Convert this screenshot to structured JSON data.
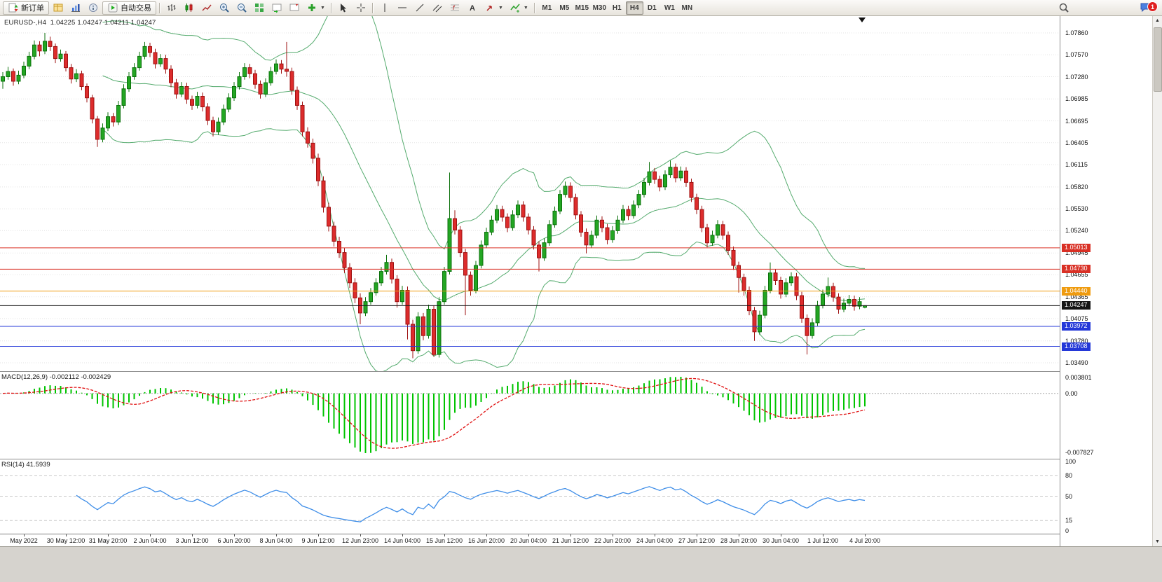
{
  "toolbar": {
    "new_order": "新订单",
    "auto_trading": "自动交易",
    "timeframes": [
      "M1",
      "M5",
      "M15",
      "M30",
      "H1",
      "H4",
      "D1",
      "W1",
      "MN"
    ],
    "active_timeframe": "H4",
    "notification_count": "1"
  },
  "chart": {
    "header": {
      "symbol_tf": "EURUSD-,H4",
      "ohlc": "1.04225 1.04247 1.04211 1.04247"
    }
  },
  "chart_data": {
    "type": "candlestick",
    "symbol": "EURUSD-",
    "timeframe": "H4",
    "ohlc_current": {
      "open": "1.04225",
      "high": "1.04247",
      "low": "1.04211",
      "close": "1.04247"
    },
    "y_ticks": [
      "1.07860",
      "1.07570",
      "1.07280",
      "1.06985",
      "1.06695",
      "1.06405",
      "1.06115",
      "1.05820",
      "1.05530",
      "1.05240",
      "1.04945",
      "1.04655",
      "1.04365",
      "1.04075",
      "1.03780",
      "1.03490"
    ],
    "x_labels": [
      {
        "text": "May 2022",
        "i": 4
      },
      {
        "text": "30 May 12:00",
        "i": 12
      },
      {
        "text": "31 May 20:00",
        "i": 20
      },
      {
        "text": "2 Jun 04:00",
        "i": 28
      },
      {
        "text": "3 Jun 12:00",
        "i": 36
      },
      {
        "text": "6 Jun 20:00",
        "i": 44
      },
      {
        "text": "8 Jun 04:00",
        "i": 52
      },
      {
        "text": "9 Jun 12:00",
        "i": 60
      },
      {
        "text": "12 Jun 23:00",
        "i": 68
      },
      {
        "text": "14 Jun 04:00",
        "i": 76
      },
      {
        "text": "15 Jun 12:00",
        "i": 84
      },
      {
        "text": "16 Jun 20:00",
        "i": 92
      },
      {
        "text": "20 Jun 04:00",
        "i": 100
      },
      {
        "text": "21 Jun 12:00",
        "i": 108
      },
      {
        "text": "22 Jun 20:00",
        "i": 116
      },
      {
        "text": "24 Jun 04:00",
        "i": 124
      },
      {
        "text": "27 Jun 12:00",
        "i": 132
      },
      {
        "text": "28 Jun 20:00",
        "i": 140
      },
      {
        "text": "30 Jun 04:00",
        "i": 148
      },
      {
        "text": "1 Jul 12:00",
        "i": 156
      },
      {
        "text": "4 Jul 20:00",
        "i": 164
      }
    ],
    "hlines": [
      {
        "price": 1.05013,
        "label": "1.05013",
        "color": "#d93025"
      },
      {
        "price": 1.0473,
        "label": "1.04730",
        "color": "#d93025"
      },
      {
        "price": 1.0444,
        "label": "1.04440",
        "color": "#ef9b0f"
      },
      {
        "price": 1.03972,
        "label": "1.03972",
        "color": "#2438d8"
      },
      {
        "price": 1.03708,
        "label": "1.03708",
        "color": "#2438d8"
      }
    ],
    "price_line": {
      "price": 1.04247,
      "label": "1.04247",
      "color": "#141414"
    },
    "colors": {
      "up": "#23a623",
      "up_border": "#0c720c",
      "down": "#dd2c2c",
      "down_border": "#9e1212",
      "bollinger": "#55ab6e",
      "macd_hist": "#00c400",
      "macd_signal": "#e01010",
      "rsi": "#3f8ee8",
      "grid": "#e3e3e3"
    },
    "indicators": {
      "bollinger": {
        "name": "Bollinger Bands",
        "period": 20,
        "deviation": 2
      },
      "macd": {
        "label": "MACD(12,26,9)",
        "value_main": "-0.002112",
        "value_signal": "-0.002429",
        "axis_top": "0.003801",
        "axis_zero": "0.00",
        "axis_bottom": "-0.007827"
      },
      "rsi": {
        "label": "RSI(14)",
        "value": "41.5939",
        "axis": [
          "100",
          "80",
          "50",
          "15",
          "0"
        ],
        "levels": [
          80,
          50,
          15
        ]
      }
    },
    "candles": [
      [
        1.0722,
        1.0734,
        1.0712,
        1.0728
      ],
      [
        1.0728,
        1.0741,
        1.0724,
        1.0735
      ],
      [
        1.0735,
        1.0739,
        1.0716,
        1.0722
      ],
      [
        1.0722,
        1.0736,
        1.0718,
        1.073
      ],
      [
        1.073,
        1.0748,
        1.0726,
        1.0742
      ],
      [
        1.0742,
        1.0761,
        1.0738,
        1.0755
      ],
      [
        1.0755,
        1.0776,
        1.0751,
        1.077
      ],
      [
        1.077,
        1.0775,
        1.0755,
        1.0762
      ],
      [
        1.0762,
        1.0786,
        1.0758,
        1.0775
      ],
      [
        1.0775,
        1.0781,
        1.0762,
        1.0768
      ],
      [
        1.0768,
        1.0772,
        1.0746,
        1.0752
      ],
      [
        1.0752,
        1.0764,
        1.0748,
        1.0758
      ],
      [
        1.0758,
        1.0762,
        1.0735,
        1.074
      ],
      [
        1.074,
        1.0745,
        1.0719,
        1.0725
      ],
      [
        1.0725,
        1.0738,
        1.0721,
        1.0732
      ],
      [
        1.0732,
        1.0736,
        1.071,
        1.0715
      ],
      [
        1.0715,
        1.0719,
        1.0694,
        1.07
      ],
      [
        1.07,
        1.0704,
        1.0666,
        1.0672
      ],
      [
        1.0672,
        1.0676,
        1.0635,
        1.0645
      ],
      [
        1.0645,
        1.0666,
        1.0641,
        1.066
      ],
      [
        1.066,
        1.0681,
        1.0656,
        1.0675
      ],
      [
        1.0675,
        1.068,
        1.0662,
        1.0668
      ],
      [
        1.0668,
        1.0696,
        1.0664,
        1.069
      ],
      [
        1.069,
        1.0718,
        1.0686,
        1.0712
      ],
      [
        1.0712,
        1.0734,
        1.0708,
        1.0728
      ],
      [
        1.0728,
        1.0746,
        1.0724,
        1.074
      ],
      [
        1.074,
        1.0761,
        1.0736,
        1.0755
      ],
      [
        1.0755,
        1.0774,
        1.0751,
        1.0768
      ],
      [
        1.0768,
        1.0773,
        1.0754,
        1.076
      ],
      [
        1.076,
        1.0765,
        1.0739,
        1.0745
      ],
      [
        1.0745,
        1.0758,
        1.0741,
        1.0752
      ],
      [
        1.0752,
        1.0757,
        1.0732,
        1.0738
      ],
      [
        1.0738,
        1.0743,
        1.0714,
        1.072
      ],
      [
        1.072,
        1.0725,
        1.0699,
        1.0705
      ],
      [
        1.0705,
        1.0721,
        1.0701,
        1.0715
      ],
      [
        1.0715,
        1.072,
        1.0692,
        1.0698
      ],
      [
        1.0698,
        1.0703,
        1.0684,
        1.069
      ],
      [
        1.069,
        1.0708,
        1.0686,
        1.0702
      ],
      [
        1.0702,
        1.0707,
        1.0682,
        1.0688
      ],
      [
        1.0688,
        1.0693,
        1.0664,
        1.067
      ],
      [
        1.067,
        1.0675,
        1.0649,
        1.0655
      ],
      [
        1.0655,
        1.0674,
        1.0651,
        1.0668
      ],
      [
        1.0668,
        1.0691,
        1.0664,
        1.0685
      ],
      [
        1.0685,
        1.0706,
        1.0681,
        1.07
      ],
      [
        1.07,
        1.0721,
        1.0696,
        1.0715
      ],
      [
        1.0715,
        1.0734,
        1.0711,
        1.0728
      ],
      [
        1.0728,
        1.0746,
        1.0724,
        1.074
      ],
      [
        1.074,
        1.0745,
        1.0726,
        1.0732
      ],
      [
        1.0732,
        1.0737,
        1.0712,
        1.0718
      ],
      [
        1.0718,
        1.0723,
        1.0699,
        1.0705
      ],
      [
        1.0705,
        1.0726,
        1.0701,
        1.072
      ],
      [
        1.072,
        1.0741,
        1.0716,
        1.0735
      ],
      [
        1.0735,
        1.0751,
        1.0731,
        1.0745
      ],
      [
        1.0745,
        1.075,
        1.0732,
        1.0738
      ],
      [
        1.0738,
        1.0774,
        1.0728,
        1.0735
      ],
      [
        1.0735,
        1.074,
        1.0704,
        1.071
      ],
      [
        1.071,
        1.0715,
        1.0684,
        1.069
      ],
      [
        1.069,
        1.0695,
        1.0649,
        1.0655
      ],
      [
        1.0655,
        1.0661,
        1.0634,
        1.064
      ],
      [
        1.064,
        1.0646,
        1.0613,
        1.062
      ],
      [
        1.062,
        1.0626,
        1.0583,
        1.059
      ],
      [
        1.059,
        1.0596,
        1.0548,
        1.0555
      ],
      [
        1.0555,
        1.0561,
        1.0523,
        1.053
      ],
      [
        1.053,
        1.0536,
        1.0503,
        1.051
      ],
      [
        1.051,
        1.0516,
        1.0488,
        1.0495
      ],
      [
        1.0495,
        1.0501,
        1.0468,
        1.0475
      ],
      [
        1.0475,
        1.0481,
        1.0448,
        1.0455
      ],
      [
        1.0455,
        1.0461,
        1.0428,
        1.0435
      ],
      [
        1.0435,
        1.0441,
        1.04,
        1.0415
      ],
      [
        1.0415,
        1.0436,
        1.0411,
        1.043
      ],
      [
        1.043,
        1.0448,
        1.0426,
        1.0442
      ],
      [
        1.0442,
        1.0461,
        1.0438,
        1.0455
      ],
      [
        1.0455,
        1.0476,
        1.0451,
        1.047
      ],
      [
        1.047,
        1.0492,
        1.0466,
        1.0482
      ],
      [
        1.0482,
        1.0487,
        1.0454,
        1.046
      ],
      [
        1.046,
        1.0465,
        1.0422,
        1.043
      ],
      [
        1.043,
        1.0451,
        1.0426,
        1.0445
      ],
      [
        1.0445,
        1.045,
        1.038,
        1.04
      ],
      [
        1.04,
        1.0406,
        1.0355,
        1.0365
      ],
      [
        1.0365,
        1.0416,
        1.0361,
        1.041
      ],
      [
        1.041,
        1.0415,
        1.0379,
        1.0385
      ],
      [
        1.0385,
        1.0426,
        1.0381,
        1.042
      ],
      [
        1.042,
        1.0425,
        1.0357,
        1.036
      ],
      [
        1.036,
        1.0436,
        1.0356,
        1.043
      ],
      [
        1.043,
        1.0476,
        1.0426,
        1.047
      ],
      [
        1.047,
        1.0601,
        1.0466,
        1.054
      ],
      [
        1.054,
        1.0551,
        1.0519,
        1.0525
      ],
      [
        1.0525,
        1.053,
        1.0489,
        1.0495
      ],
      [
        1.0495,
        1.05,
        1.0412,
        1.0465
      ],
      [
        1.0465,
        1.047,
        1.0438,
        1.0445
      ],
      [
        1.0445,
        1.0484,
        1.0441,
        1.0478
      ],
      [
        1.0478,
        1.0511,
        1.0474,
        1.0505
      ],
      [
        1.0505,
        1.0528,
        1.0501,
        1.0522
      ],
      [
        1.0522,
        1.0544,
        1.0518,
        1.0538
      ],
      [
        1.0538,
        1.0558,
        1.0534,
        1.0552
      ],
      [
        1.0552,
        1.0557,
        1.0536,
        1.0542
      ],
      [
        1.0542,
        1.0547,
        1.0522,
        1.0528
      ],
      [
        1.0528,
        1.0551,
        1.0524,
        1.0545
      ],
      [
        1.0545,
        1.0564,
        1.0541,
        1.0558
      ],
      [
        1.0558,
        1.0563,
        1.0536,
        1.0542
      ],
      [
        1.0542,
        1.0547,
        1.0519,
        1.0525
      ],
      [
        1.0525,
        1.053,
        1.0499,
        1.0505
      ],
      [
        1.0505,
        1.051,
        1.047,
        1.0488
      ],
      [
        1.0488,
        1.0514,
        1.0484,
        1.0508
      ],
      [
        1.0508,
        1.0538,
        1.0504,
        1.0532
      ],
      [
        1.0532,
        1.0556,
        1.0528,
        1.055
      ],
      [
        1.055,
        1.0578,
        1.0546,
        1.0572
      ],
      [
        1.0572,
        1.0589,
        1.0568,
        1.0583
      ],
      [
        1.0583,
        1.0588,
        1.0562,
        1.0568
      ],
      [
        1.0568,
        1.0573,
        1.0539,
        1.0545
      ],
      [
        1.0545,
        1.055,
        1.0516,
        1.0522
      ],
      [
        1.0522,
        1.0527,
        1.0494,
        1.0505
      ],
      [
        1.0505,
        1.0524,
        1.0501,
        1.0518
      ],
      [
        1.0518,
        1.0544,
        1.0514,
        1.0538
      ],
      [
        1.0538,
        1.0543,
        1.0522,
        1.0528
      ],
      [
        1.0528,
        1.0533,
        1.0506,
        1.0512
      ],
      [
        1.0512,
        1.053,
        1.0508,
        1.0524
      ],
      [
        1.0524,
        1.0544,
        1.052,
        1.0538
      ],
      [
        1.0538,
        1.0558,
        1.0534,
        1.0552
      ],
      [
        1.0552,
        1.0557,
        1.0538,
        1.0544
      ],
      [
        1.0544,
        1.0564,
        1.054,
        1.0558
      ],
      [
        1.0558,
        1.0578,
        1.0554,
        1.0572
      ],
      [
        1.0572,
        1.0594,
        1.0568,
        1.0588
      ],
      [
        1.0588,
        1.0615,
        1.0584,
        1.0602
      ],
      [
        1.0602,
        1.0607,
        1.0586,
        1.0592
      ],
      [
        1.0592,
        1.0597,
        1.0576,
        1.0582
      ],
      [
        1.0582,
        1.0604,
        1.0578,
        1.0598
      ],
      [
        1.0598,
        1.0617,
        1.0594,
        1.0608
      ],
      [
        1.0608,
        1.0613,
        1.0588,
        1.0594
      ],
      [
        1.0594,
        1.0609,
        1.059,
        1.0603
      ],
      [
        1.0603,
        1.0608,
        1.0582,
        1.0588
      ],
      [
        1.0588,
        1.0593,
        1.0562,
        1.0568
      ],
      [
        1.0568,
        1.0573,
        1.0546,
        1.0552
      ],
      [
        1.0552,
        1.0557,
        1.0522,
        1.0528
      ],
      [
        1.0528,
        1.0533,
        1.0502,
        1.0508
      ],
      [
        1.0508,
        1.0524,
        1.0504,
        1.0518
      ],
      [
        1.0518,
        1.0538,
        1.0514,
        1.0532
      ],
      [
        1.0532,
        1.0537,
        1.0512,
        1.0518
      ],
      [
        1.0518,
        1.0523,
        1.0492,
        1.0498
      ],
      [
        1.0498,
        1.0503,
        1.0472,
        1.0478
      ],
      [
        1.0478,
        1.0483,
        1.0442,
        1.0462
      ],
      [
        1.0462,
        1.0467,
        1.0438,
        1.0445
      ],
      [
        1.0445,
        1.045,
        1.0412,
        1.0418
      ],
      [
        1.0418,
        1.0423,
        1.0378,
        1.039
      ],
      [
        1.039,
        1.0418,
        1.0386,
        1.0412
      ],
      [
        1.0412,
        1.0451,
        1.0408,
        1.0445
      ],
      [
        1.0445,
        1.0482,
        1.0441,
        1.0468
      ],
      [
        1.0468,
        1.0473,
        1.0452,
        1.0458
      ],
      [
        1.0458,
        1.0463,
        1.0434,
        1.044
      ],
      [
        1.044,
        1.0461,
        1.0436,
        1.0455
      ],
      [
        1.0455,
        1.0469,
        1.0451,
        1.0463
      ],
      [
        1.0463,
        1.0468,
        1.0432,
        1.0438
      ],
      [
        1.0438,
        1.0443,
        1.0402,
        1.0408
      ],
      [
        1.0408,
        1.0413,
        1.036,
        1.0385
      ],
      [
        1.0385,
        1.0408,
        1.0381,
        1.0402
      ],
      [
        1.0402,
        1.0431,
        1.0398,
        1.0425
      ],
      [
        1.0425,
        1.0446,
        1.0421,
        1.044
      ],
      [
        1.044,
        1.0462,
        1.0436,
        1.045
      ],
      [
        1.045,
        1.0455,
        1.043,
        1.0436
      ],
      [
        1.0436,
        1.0441,
        1.0414,
        1.042
      ],
      [
        1.042,
        1.0434,
        1.0416,
        1.0428
      ],
      [
        1.0428,
        1.0439,
        1.0424,
        1.0433
      ],
      [
        1.0433,
        1.0438,
        1.0418,
        1.0424
      ],
      [
        1.0424,
        1.0436,
        1.042,
        1.043
      ],
      [
        1.04225,
        1.04247,
        1.04211,
        1.04247
      ]
    ]
  }
}
